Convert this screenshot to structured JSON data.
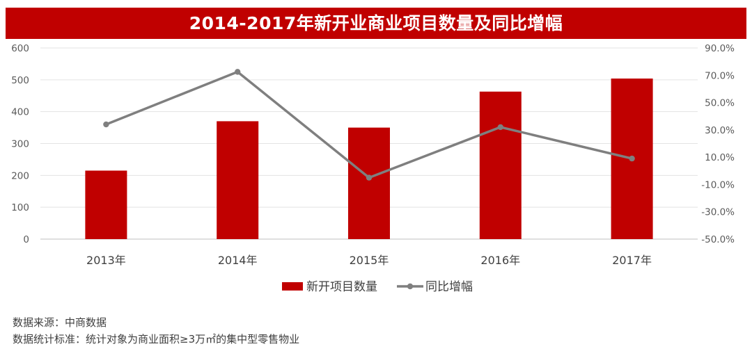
{
  "title": "2014-2017年新开业商业项目数量及同比增幅",
  "chart_data": {
    "type": "bar",
    "categories": [
      "2013年",
      "2014年",
      "2015年",
      "2016年",
      "2017年"
    ],
    "series": [
      {
        "name": "新开项目数量",
        "type": "bar",
        "axis": "left",
        "color": "#c00000",
        "values": [
          215,
          370,
          350,
          463,
          504
        ]
      },
      {
        "name": "同比增幅",
        "type": "line",
        "axis": "right",
        "color": "#7f7f7f",
        "values": [
          34.0,
          72.5,
          -5.0,
          32.0,
          9.0
        ]
      }
    ],
    "y_left": {
      "min": 0,
      "max": 600,
      "step": 100,
      "ticks": [
        "0",
        "100",
        "200",
        "300",
        "400",
        "500",
        "600"
      ]
    },
    "y_right": {
      "min": -50,
      "max": 90,
      "step": 20,
      "ticks": [
        "-50.0%",
        "-30.0%",
        "-10.0%",
        "10.0%",
        "30.0%",
        "50.0%",
        "70.0%",
        "90.0%"
      ]
    },
    "grid": true,
    "legend": "bottom"
  },
  "notes": {
    "source": "数据来源：中商数据",
    "criteria": "数据统计标准：统计对象为商业面积≥3万㎡的集中型零售物业"
  }
}
